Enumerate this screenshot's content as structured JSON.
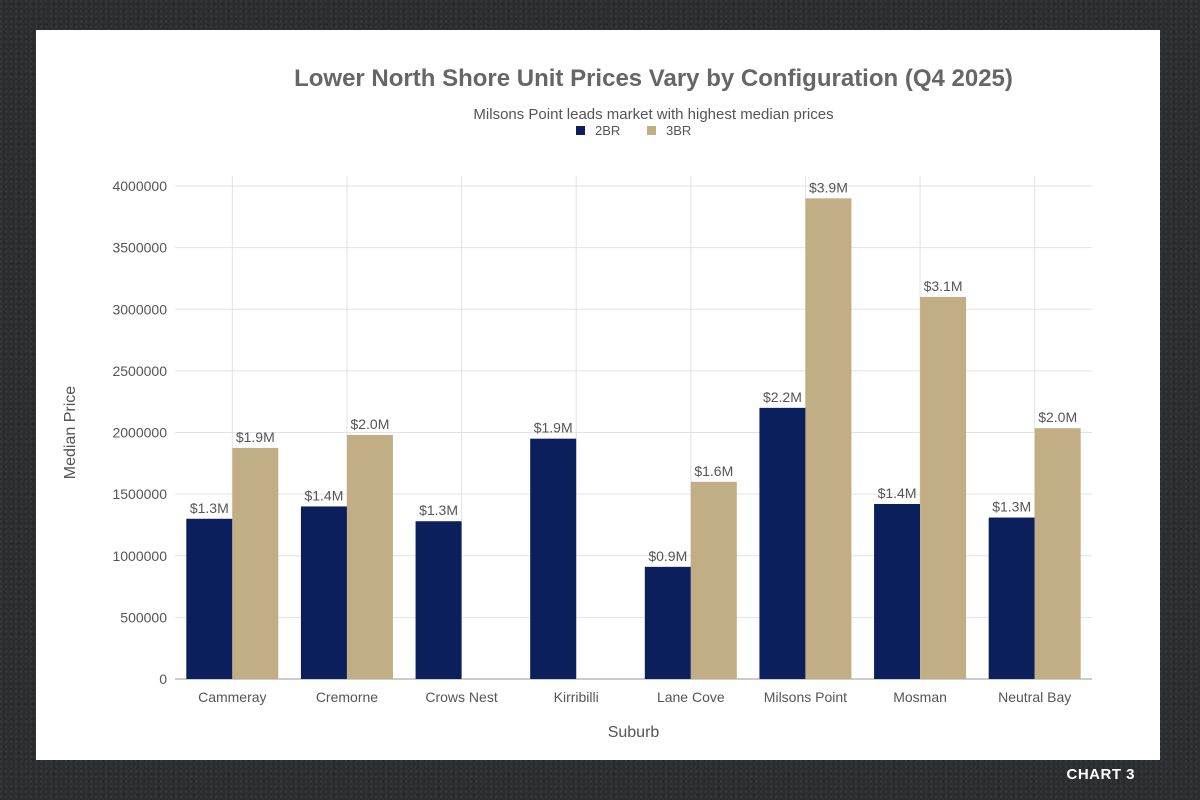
{
  "badge": "CHART 3",
  "chart_data": {
    "type": "bar",
    "title": "Lower North Shore Unit Prices Vary by Configuration (Q4 2025)",
    "subtitle": "Milsons Point leads market with highest median prices",
    "xlabel": "Suburb",
    "ylabel": "Median Price",
    "ylim": [
      0,
      4000000
    ],
    "yticks": [
      0,
      500000,
      1000000,
      1500000,
      2000000,
      2500000,
      3000000,
      3500000,
      4000000
    ],
    "grid": true,
    "legend_position": "top-center",
    "categories": [
      "Cammeray",
      "Cremorne",
      "Crows Nest",
      "Kirribilli",
      "Lane Cove",
      "Milsons Point",
      "Mosman",
      "Neutral Bay"
    ],
    "series": [
      {
        "name": "2BR",
        "color": "#0b1f5c",
        "values": [
          1300000,
          1400000,
          1280000,
          1950000,
          910000,
          2200000,
          1420000,
          1310000
        ],
        "labels": [
          "$1.3M",
          "$1.4M",
          "$1.3M",
          "$1.9M",
          "$0.9M",
          "$2.2M",
          "$1.4M",
          "$1.3M"
        ]
      },
      {
        "name": "3BR",
        "color": "#c2ae84",
        "values": [
          1875000,
          1980000,
          null,
          null,
          1600000,
          3900000,
          3100000,
          2035000
        ],
        "labels": [
          "$1.9M",
          "$2.0M",
          null,
          null,
          "$1.6M",
          "$3.9M",
          "$3.1M",
          "$2.0M"
        ]
      }
    ]
  }
}
